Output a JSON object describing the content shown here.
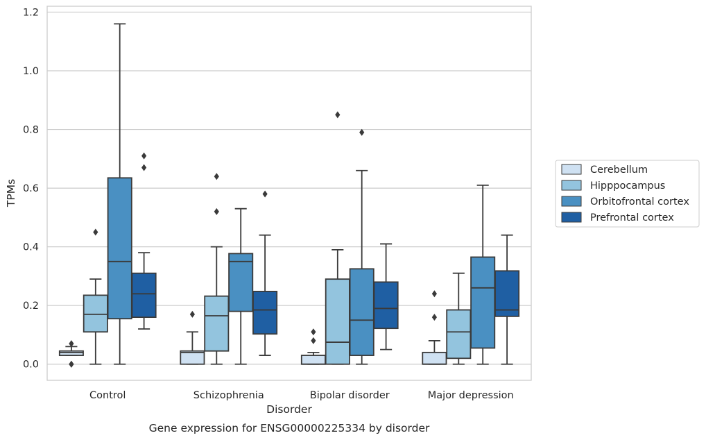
{
  "chart_data": {
    "type": "box",
    "title": "",
    "caption": "Gene expression for ENSG00000225334 by disorder",
    "xlabel": "Disorder",
    "ylabel": "TPMs",
    "ylim": [
      -0.055,
      1.22
    ],
    "yticks": [
      "0.0",
      "0.2",
      "0.4",
      "0.6",
      "0.8",
      "1.0",
      "1.2"
    ],
    "ytick_values": [
      0.0,
      0.2,
      0.4,
      0.6,
      0.8,
      1.0,
      1.2
    ],
    "grid": true,
    "legend_position": "right",
    "categories": [
      "Control",
      "Schizophrenia",
      "Bipolar disorder",
      "Major depression"
    ],
    "series": [
      {
        "name": "Cerebellum",
        "color": "#cfe1f2",
        "boxes": [
          {
            "whisker_low": 0.03,
            "q1": 0.03,
            "median": 0.04,
            "q3": 0.045,
            "whisker_high": 0.06,
            "outliers": [
              0.0,
              0.0,
              0.07
            ]
          },
          {
            "whisker_low": 0.0,
            "q1": 0.0,
            "median": 0.04,
            "q3": 0.045,
            "whisker_high": 0.11,
            "outliers": [
              0.17
            ]
          },
          {
            "whisker_low": 0.0,
            "q1": 0.0,
            "median": 0.0,
            "q3": 0.03,
            "whisker_high": 0.04,
            "outliers": [
              0.08,
              0.11
            ]
          },
          {
            "whisker_low": 0.0,
            "q1": 0.0,
            "median": 0.0,
            "q3": 0.04,
            "whisker_high": 0.08,
            "outliers": [
              0.16,
              0.24
            ]
          }
        ]
      },
      {
        "name": "Hipppocampus",
        "color": "#93c4de",
        "boxes": [
          {
            "whisker_low": 0.0,
            "q1": 0.11,
            "median": 0.17,
            "q3": 0.235,
            "whisker_high": 0.29,
            "outliers": [
              0.45
            ]
          },
          {
            "whisker_low": 0.0,
            "q1": 0.045,
            "median": 0.165,
            "q3": 0.232,
            "whisker_high": 0.4,
            "outliers": [
              0.52,
              0.64
            ]
          },
          {
            "whisker_low": 0.0,
            "q1": 0.0,
            "median": 0.075,
            "q3": 0.29,
            "whisker_high": 0.39,
            "outliers": [
              0.85
            ]
          },
          {
            "whisker_low": 0.0,
            "q1": 0.02,
            "median": 0.11,
            "q3": 0.185,
            "whisker_high": 0.31,
            "outliers": []
          }
        ]
      },
      {
        "name": "Orbitofrontal cortex",
        "color": "#4a90c2",
        "boxes": [
          {
            "whisker_low": 0.0,
            "q1": 0.155,
            "median": 0.35,
            "q3": 0.635,
            "whisker_high": 1.16,
            "outliers": []
          },
          {
            "whisker_low": 0.0,
            "q1": 0.18,
            "median": 0.35,
            "q3": 0.377,
            "whisker_high": 0.53,
            "outliers": []
          },
          {
            "whisker_low": 0.0,
            "q1": 0.03,
            "median": 0.15,
            "q3": 0.325,
            "whisker_high": 0.66,
            "outliers": [
              0.79
            ]
          },
          {
            "whisker_low": 0.0,
            "q1": 0.055,
            "median": 0.26,
            "q3": 0.365,
            "whisker_high": 0.61,
            "outliers": []
          }
        ]
      },
      {
        "name": "Prefrontal cortex",
        "color": "#1f5fa3",
        "boxes": [
          {
            "whisker_low": 0.12,
            "q1": 0.16,
            "median": 0.24,
            "q3": 0.31,
            "whisker_high": 0.38,
            "outliers": [
              0.67,
              0.71
            ]
          },
          {
            "whisker_low": 0.03,
            "q1": 0.103,
            "median": 0.185,
            "q3": 0.248,
            "whisker_high": 0.44,
            "outliers": [
              0.58
            ]
          },
          {
            "whisker_low": 0.05,
            "q1": 0.122,
            "median": 0.19,
            "q3": 0.28,
            "whisker_high": 0.41,
            "outliers": []
          },
          {
            "whisker_low": 0.0,
            "q1": 0.163,
            "median": 0.185,
            "q3": 0.318,
            "whisker_high": 0.44,
            "outliers": []
          }
        ]
      }
    ]
  }
}
